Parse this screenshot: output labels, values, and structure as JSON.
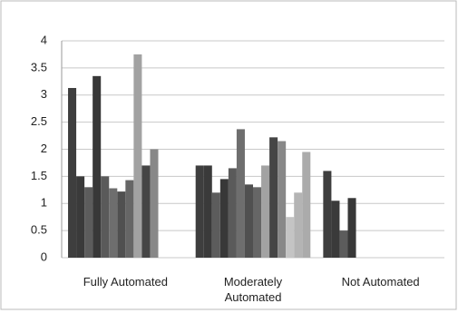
{
  "chart_data": {
    "type": "bar",
    "categories": [
      "Fully Automated",
      "Moderately Automated",
      "Not Automated"
    ],
    "series": [
      {
        "color": "#3e3e3e",
        "values": [
          3.13,
          1.7,
          1.6
        ]
      },
      {
        "color": "#3a3a3a",
        "values": [
          1.5,
          1.7,
          1.05
        ]
      },
      {
        "color": "#5c5c5c",
        "values": [
          1.3,
          1.2,
          0.5
        ]
      },
      {
        "color": "#383838",
        "values": [
          3.35,
          1.45,
          1.1
        ]
      },
      {
        "color": "#5a5a5a",
        "values": [
          1.5,
          1.65,
          null
        ]
      },
      {
        "color": "#6e6e6e",
        "values": [
          1.28,
          2.37,
          null
        ]
      },
      {
        "color": "#505050",
        "values": [
          1.22,
          1.35,
          null
        ]
      },
      {
        "color": "#666666",
        "values": [
          1.43,
          1.3,
          null
        ]
      },
      {
        "color": "#a2a2a2",
        "values": [
          3.75,
          1.7,
          null
        ]
      },
      {
        "color": "#454545",
        "values": [
          1.7,
          2.22,
          null
        ]
      },
      {
        "color": "#888888",
        "values": [
          2.0,
          2.15,
          null
        ]
      },
      {
        "color": "#c4c4c4",
        "values": [
          null,
          0.75,
          null
        ]
      },
      {
        "color": "#b4b4b4",
        "values": [
          null,
          1.2,
          null
        ]
      },
      {
        "color": "#ababab",
        "values": [
          null,
          1.95,
          null
        ]
      }
    ],
    "ylim": [
      0,
      4
    ],
    "yticks": [
      0,
      0.5,
      1,
      1.5,
      2,
      2.5,
      3,
      3.5,
      4
    ],
    "grid": true
  }
}
